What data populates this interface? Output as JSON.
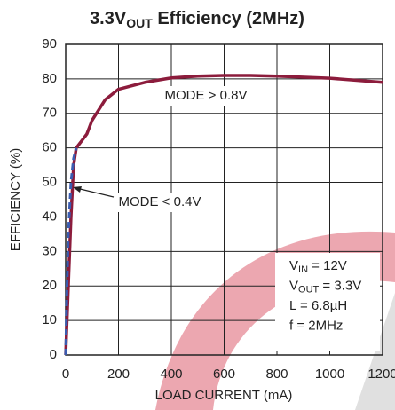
{
  "chart_data": {
    "type": "line",
    "title": {
      "main": "3.3V",
      "sub": "OUT",
      "rest": " Efficiency (2MHz)"
    },
    "xlabel": "LOAD CURRENT (mA)",
    "ylabel": "EFFICIENCY (%)",
    "xlim": [
      0,
      1200
    ],
    "xticks": [
      0,
      200,
      400,
      600,
      800,
      1000,
      1200
    ],
    "ylim": [
      0,
      90
    ],
    "yticks": [
      0,
      10,
      20,
      30,
      40,
      50,
      60,
      70,
      80,
      90
    ],
    "grid": true,
    "series": [
      {
        "name": "MODE > 0.8V",
        "color": "#8c1c3c",
        "dash": false,
        "x": [
          0,
          10,
          20,
          30,
          40,
          60,
          80,
          100,
          150,
          200,
          300,
          400,
          500,
          600,
          700,
          800,
          1000,
          1200
        ],
        "values": [
          0,
          20,
          40,
          55,
          60,
          62,
          64,
          68,
          74,
          77,
          79,
          80.3,
          80.8,
          81,
          81,
          80.8,
          80.2,
          79
        ]
      },
      {
        "name": "MODE < 0.4V",
        "color": "#3a5cb0",
        "dash": true,
        "x": [
          0,
          5,
          10,
          20,
          30,
          40
        ],
        "values": [
          0,
          20,
          35,
          50,
          57,
          60
        ]
      }
    ],
    "conditions": [
      {
        "main": "V",
        "sub": "IN",
        "rest": " = 12V"
      },
      {
        "main": "V",
        "sub": "OUT",
        "rest": " = 3.3V"
      },
      {
        "main": "L = 6.8µH",
        "sub": null,
        "rest": null
      },
      {
        "main": "f = 2MHz",
        "sub": null,
        "rest": null
      }
    ]
  }
}
